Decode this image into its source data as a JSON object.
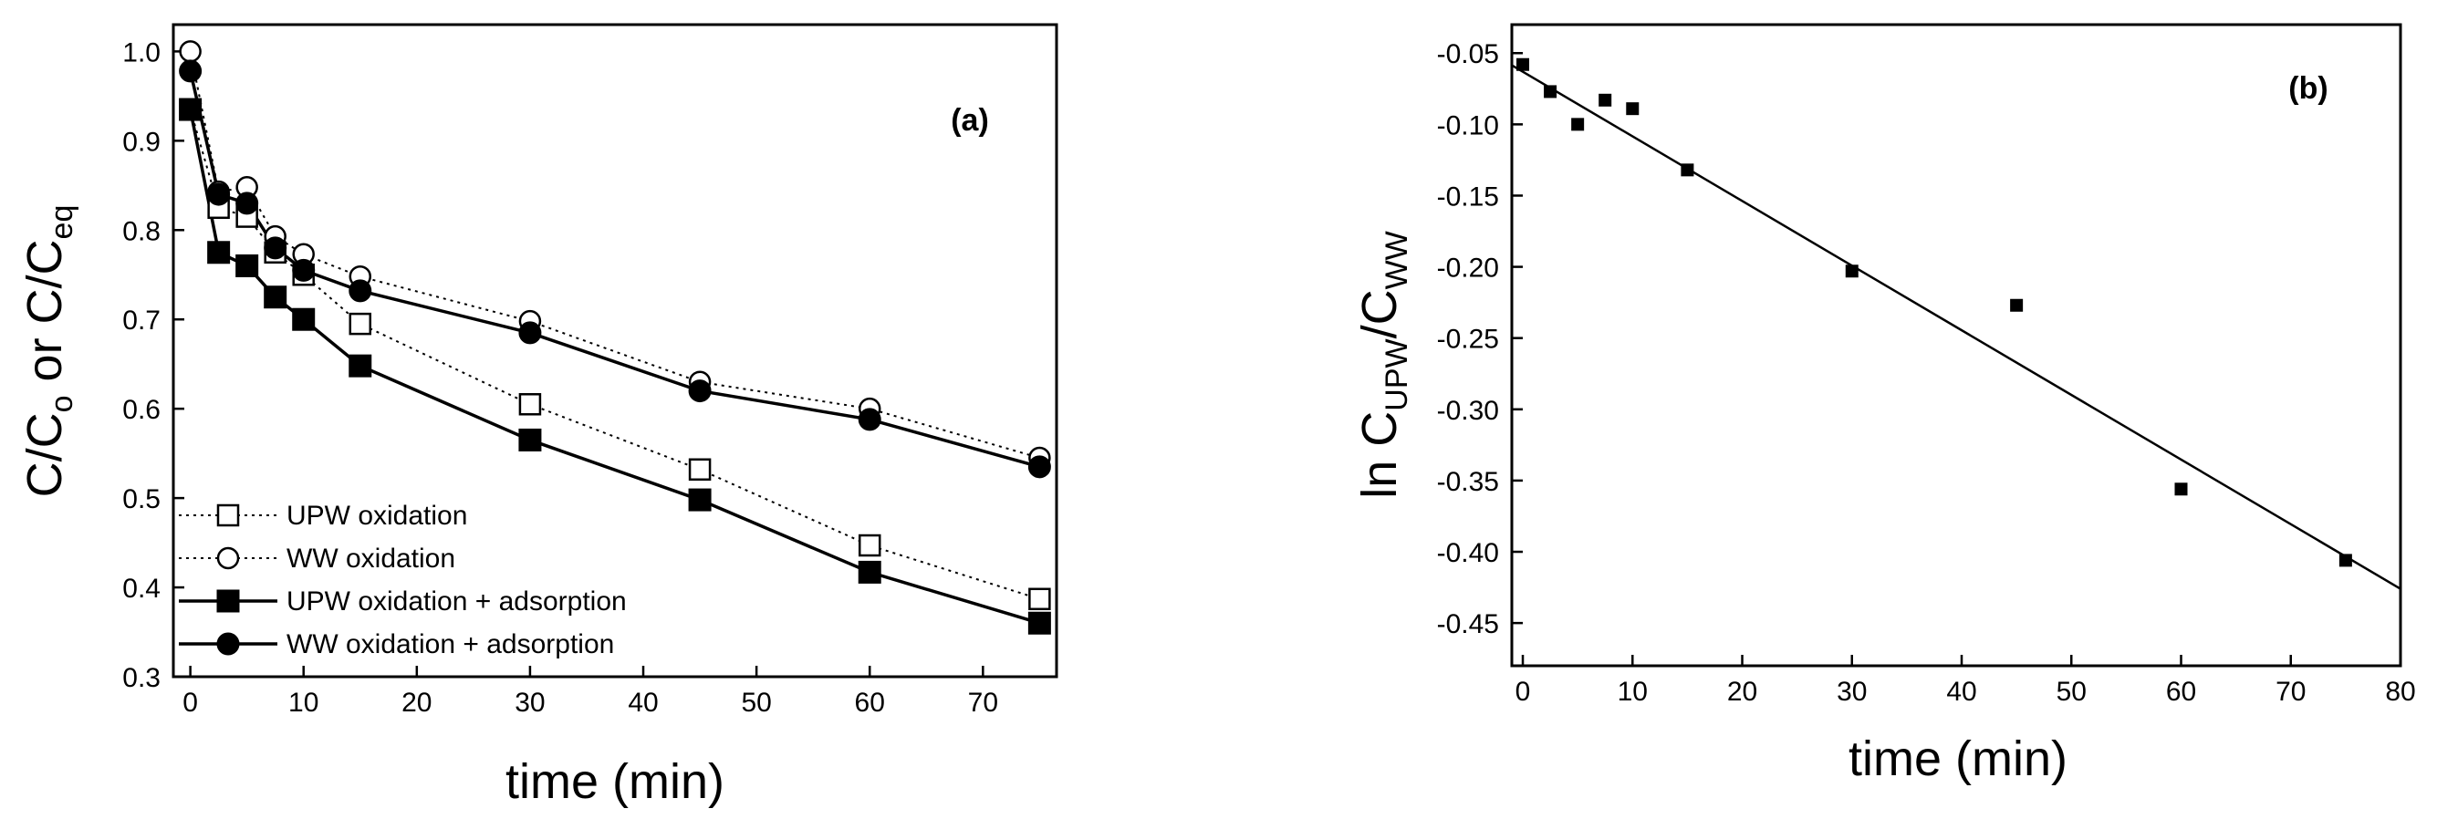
{
  "chart_data": [
    {
      "type": "line",
      "panel_label": "(a)",
      "xlabel": "time (min)",
      "ylabel": {
        "p1": "C/C",
        "s1": "o",
        "mid": " or C/C",
        "s2": "eq"
      },
      "xlim": [
        -1.5,
        76.5
      ],
      "ylim": [
        0.3,
        1.03
      ],
      "xticks": [
        0,
        10,
        20,
        30,
        40,
        50,
        60,
        70
      ],
      "xtick_labels": [
        "0",
        "10",
        "20",
        "30",
        "40",
        "50",
        "60",
        "70"
      ],
      "yticks": [
        0.3,
        0.4,
        0.5,
        0.6,
        0.7,
        0.8,
        0.9,
        1.0
      ],
      "ytick_labels": [
        "0.3",
        "0.4",
        "0.5",
        "0.6",
        "0.7",
        "0.8",
        "0.9",
        "1.0"
      ],
      "legend_position": "bottom-left",
      "series": [
        {
          "name": "UPW oxidation",
          "marker": "square-open",
          "line": "dotted",
          "x": [
            0,
            2.5,
            5,
            7.5,
            10,
            15,
            30,
            45,
            60,
            75
          ],
          "y": [
            0.935,
            0.825,
            0.815,
            0.775,
            0.75,
            0.695,
            0.605,
            0.532,
            0.447,
            0.387
          ]
        },
        {
          "name": "WW oxidation",
          "marker": "circle-open",
          "line": "dotted",
          "x": [
            0,
            2.5,
            5,
            7.5,
            10,
            15,
            30,
            45,
            60,
            75
          ],
          "y": [
            1.0,
            0.843,
            0.848,
            0.793,
            0.773,
            0.748,
            0.698,
            0.63,
            0.6,
            0.545
          ]
        },
        {
          "name": "UPW oxidation + adsorption",
          "marker": "square-filled",
          "line": "solid",
          "x": [
            0,
            2.5,
            5,
            7.5,
            10,
            15,
            30,
            45,
            60,
            75
          ],
          "y": [
            0.935,
            0.775,
            0.76,
            0.725,
            0.7,
            0.648,
            0.565,
            0.498,
            0.417,
            0.36
          ]
        },
        {
          "name": "WW oxidation + adsorption",
          "marker": "circle-filled",
          "line": "solid",
          "x": [
            0,
            2.5,
            5,
            7.5,
            10,
            15,
            30,
            45,
            60,
            75
          ],
          "y": [
            0.978,
            0.84,
            0.83,
            0.78,
            0.755,
            0.732,
            0.685,
            0.62,
            0.588,
            0.535
          ]
        }
      ]
    },
    {
      "type": "scatter",
      "panel_label": "(b)",
      "xlabel": "time (min)",
      "ylabel": {
        "p1": "ln C",
        "s1": "UPW",
        "mid": "/C",
        "s2": "WW"
      },
      "xlim": [
        -1,
        80
      ],
      "ylim": [
        -0.48,
        -0.03
      ],
      "xticks": [
        0,
        10,
        20,
        30,
        40,
        50,
        60,
        70,
        80
      ],
      "xtick_labels": [
        "0",
        "10",
        "20",
        "30",
        "40",
        "50",
        "60",
        "70",
        "80"
      ],
      "yticks": [
        -0.05,
        -0.1,
        -0.15,
        -0.2,
        -0.25,
        -0.3,
        -0.35,
        -0.4,
        -0.45
      ],
      "ytick_labels": [
        "-0.05",
        "-0.10",
        "-0.15",
        "-0.20",
        "-0.25",
        "-0.30",
        "-0.35",
        "-0.40",
        "-0.45"
      ],
      "series": [
        {
          "name": "ln CUPW/CWW",
          "marker": "square-filled-small",
          "x": [
            0,
            2.5,
            5,
            7.5,
            10,
            15,
            30,
            45,
            60,
            75
          ],
          "y": [
            -0.058,
            -0.077,
            -0.1,
            -0.083,
            -0.089,
            -0.132,
            -0.203,
            -0.227,
            -0.356,
            -0.406
          ]
        }
      ],
      "fit_line": {
        "x": [
          -1,
          80
        ],
        "y": [
          -0.0585,
          -0.426
        ]
      }
    }
  ]
}
